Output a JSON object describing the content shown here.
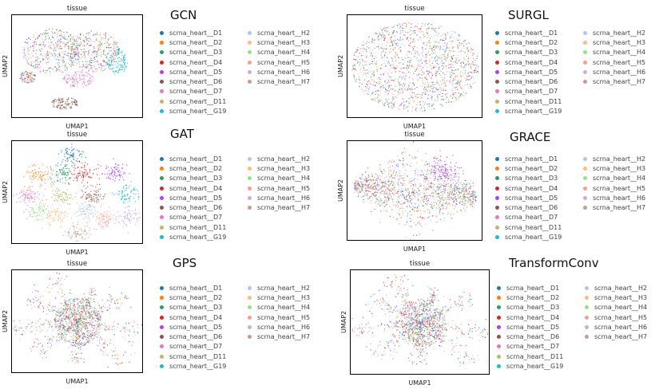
{
  "legend_entries": [
    {
      "label": "scrna_heart__D1",
      "color": "#1f77b4"
    },
    {
      "label": "scrna_heart__D2",
      "color": "#ff7f0e"
    },
    {
      "label": "scrna_heart__D3",
      "color": "#279e68"
    },
    {
      "label": "scrna_heart__D4",
      "color": "#d62728"
    },
    {
      "label": "scrna_heart__D5",
      "color": "#aa40fc"
    },
    {
      "label": "scrna_heart__D6",
      "color": "#8c564b"
    },
    {
      "label": "scrna_heart__D7",
      "color": "#e377c2"
    },
    {
      "label": "scrna_heart__D11",
      "color": "#b5bd61"
    },
    {
      "label": "scrna_heart__G19",
      "color": "#17becf"
    },
    {
      "label": "scrna_heart__H2",
      "color": "#aec7e8"
    },
    {
      "label": "scrna_heart__H3",
      "color": "#ffbb78"
    },
    {
      "label": "scrna_heart__H4",
      "color": "#98df8a"
    },
    {
      "label": "scrna_heart__H5",
      "color": "#ff9896"
    },
    {
      "label": "scrna_heart__H6",
      "color": "#c5b0d5"
    },
    {
      "label": "scrna_heart__H7",
      "color": "#c49c94"
    }
  ],
  "chart_data": [
    {
      "type": "scatter",
      "method": "GCN",
      "title": "tissue",
      "xlabel": "UMAP1",
      "ylabel": "UMAP2",
      "grid": false,
      "legend_location": "right",
      "embedding": "clustered"
    },
    {
      "type": "scatter",
      "method": "SURGL",
      "title": "tissue",
      "xlabel": "UMAP1",
      "ylabel": "UMAP2",
      "grid": false,
      "legend_location": "right",
      "embedding": "mixed-blob"
    },
    {
      "type": "scatter",
      "method": "GAT",
      "title": "tissue",
      "xlabel": "UMAP1",
      "ylabel": "UMAP2",
      "grid": false,
      "legend_location": "right",
      "embedding": "separated-clusters"
    },
    {
      "type": "scatter",
      "method": "GRACE",
      "title": "tissue",
      "xlabel": "UMAP1",
      "ylabel": "UMAP2",
      "grid": false,
      "legend_location": "right",
      "embedding": "elongated"
    },
    {
      "type": "scatter",
      "method": "GPS",
      "title": "tissue",
      "xlabel": "UMAP1",
      "ylabel": "UMAP2",
      "grid": false,
      "legend_location": "right",
      "embedding": "star"
    },
    {
      "type": "scatter",
      "method": "TransformConv",
      "title": "tissue",
      "xlabel": "UMAP1",
      "ylabel": "UMAP2",
      "grid": false,
      "legend_location": "right",
      "embedding": "star"
    }
  ]
}
